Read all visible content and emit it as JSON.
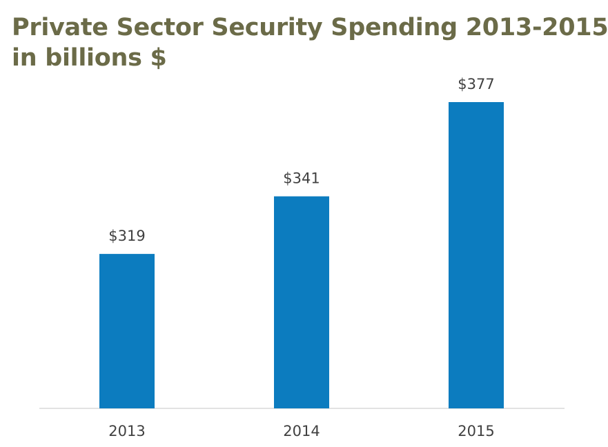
{
  "chart_data": {
    "type": "bar",
    "title_lines": [
      "Private Sector Security Spending 2013-2015",
      "in billions $"
    ],
    "categories": [
      "2013",
      "2014",
      "2015"
    ],
    "values": [
      319,
      341,
      377
    ],
    "value_labels": [
      "$319",
      "$341",
      "$377"
    ],
    "ylim": [
      260,
      380
    ],
    "grid": false,
    "legend": "none"
  },
  "colors": {
    "bar": "#0c7cbf",
    "title": "#6b6b48",
    "text": "#404040",
    "axis": "#d9d9d9"
  }
}
